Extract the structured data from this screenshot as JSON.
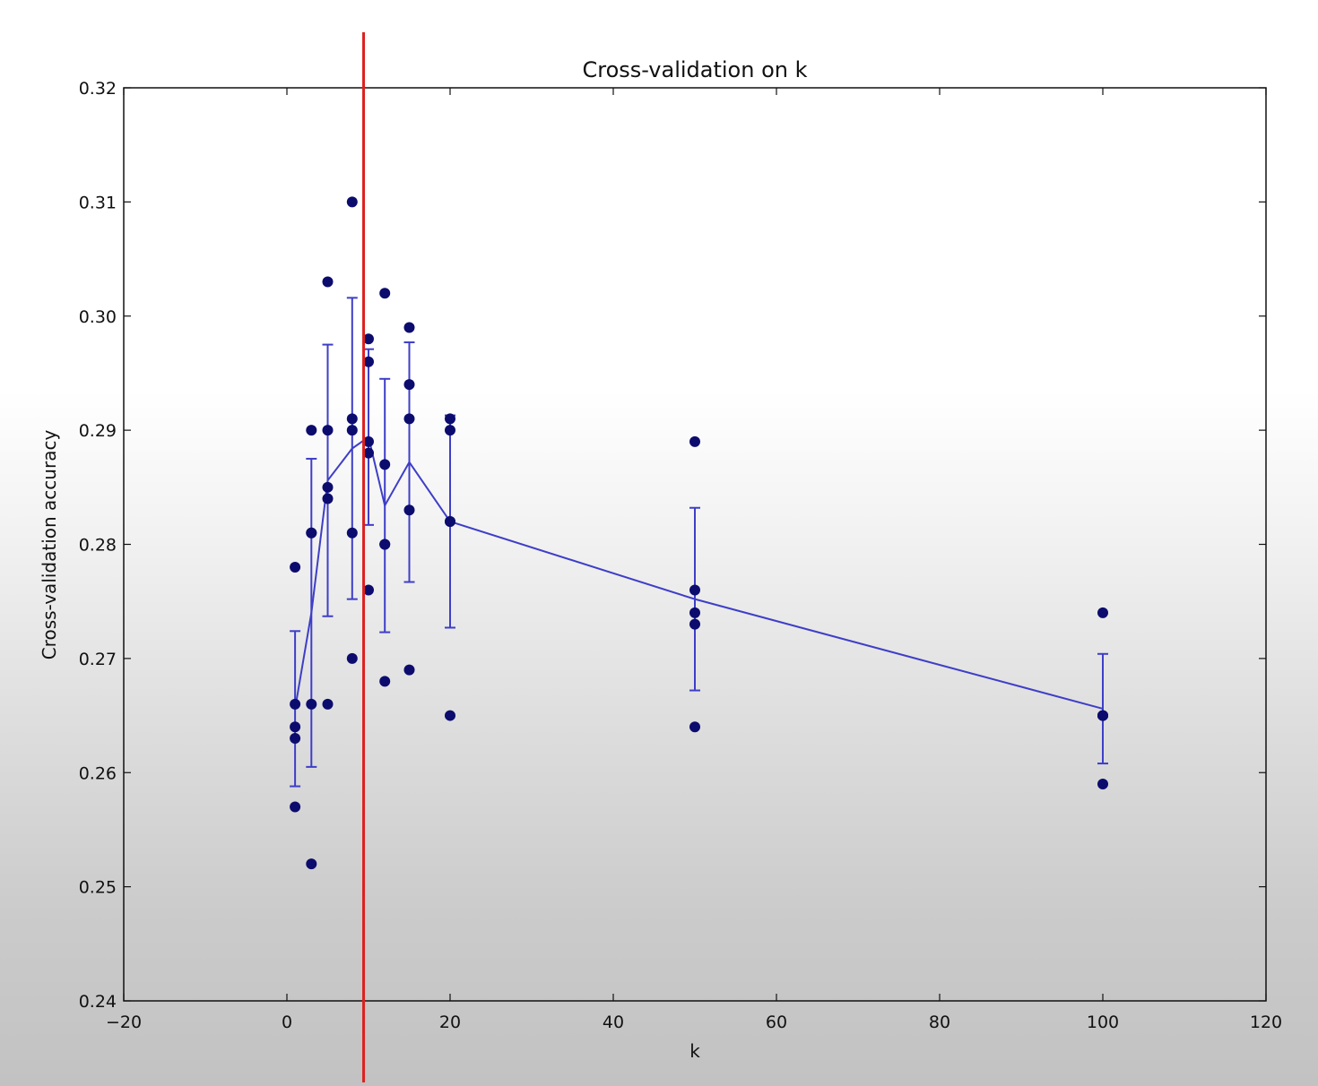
{
  "chart_data": {
    "type": "scatter",
    "title": "Cross-validation on k",
    "xlabel": "k",
    "ylabel": "Cross-validation accuracy",
    "xlim": [
      -20,
      120
    ],
    "ylim": [
      0.24,
      0.32
    ],
    "xticks": [
      "−20",
      "0",
      "20",
      "40",
      "60",
      "80",
      "100",
      "120"
    ],
    "yticks": [
      "0.24",
      "0.25",
      "0.26",
      "0.27",
      "0.28",
      "0.29",
      "0.30",
      "0.31",
      "0.32"
    ],
    "grid": false,
    "legend": "none",
    "points": [
      {
        "k": 1,
        "accuracies": [
          0.278,
          0.266,
          0.264,
          0.263,
          0.257
        ]
      },
      {
        "k": 3,
        "accuracies": [
          0.29,
          0.281,
          0.266,
          0.252,
          0.281
        ]
      },
      {
        "k": 5,
        "accuracies": [
          0.303,
          0.29,
          0.285,
          0.284,
          0.266
        ]
      },
      {
        "k": 8,
        "accuracies": [
          0.31,
          0.291,
          0.29,
          0.281,
          0.27
        ]
      },
      {
        "k": 10,
        "accuracies": [
          0.298,
          0.296,
          0.289,
          0.288,
          0.276
        ]
      },
      {
        "k": 12,
        "accuracies": [
          0.302,
          0.287,
          0.28,
          0.28,
          0.268
        ]
      },
      {
        "k": 15,
        "accuracies": [
          0.299,
          0.294,
          0.291,
          0.283,
          0.269
        ]
      },
      {
        "k": 20,
        "accuracies": [
          0.291,
          0.29,
          0.282,
          0.282,
          0.265
        ]
      },
      {
        "k": 50,
        "accuracies": [
          0.289,
          0.276,
          0.274,
          0.273,
          0.264
        ]
      },
      {
        "k": 100,
        "accuracies": [
          0.274,
          0.265,
          0.265,
          0.265,
          0.259
        ]
      }
    ],
    "mean_line": {
      "k": [
        1,
        3,
        5,
        8,
        10,
        12,
        15,
        20,
        50,
        100
      ],
      "mean": [
        0.2656,
        0.274,
        0.2856,
        0.2884,
        0.2894,
        0.2834,
        0.2872,
        0.282,
        0.2752,
        0.2656
      ],
      "std": [
        0.0068,
        0.0135,
        0.0119,
        0.0132,
        0.0077,
        0.0111,
        0.0105,
        0.0093,
        0.008,
        0.0048
      ]
    },
    "vertical_marker": {
      "x": 9.4
    },
    "colors": {
      "points": "#0c0c6e",
      "mean_line": "#3e3ec8",
      "vertical_marker": "#dd2020",
      "axes": "#111111"
    }
  }
}
